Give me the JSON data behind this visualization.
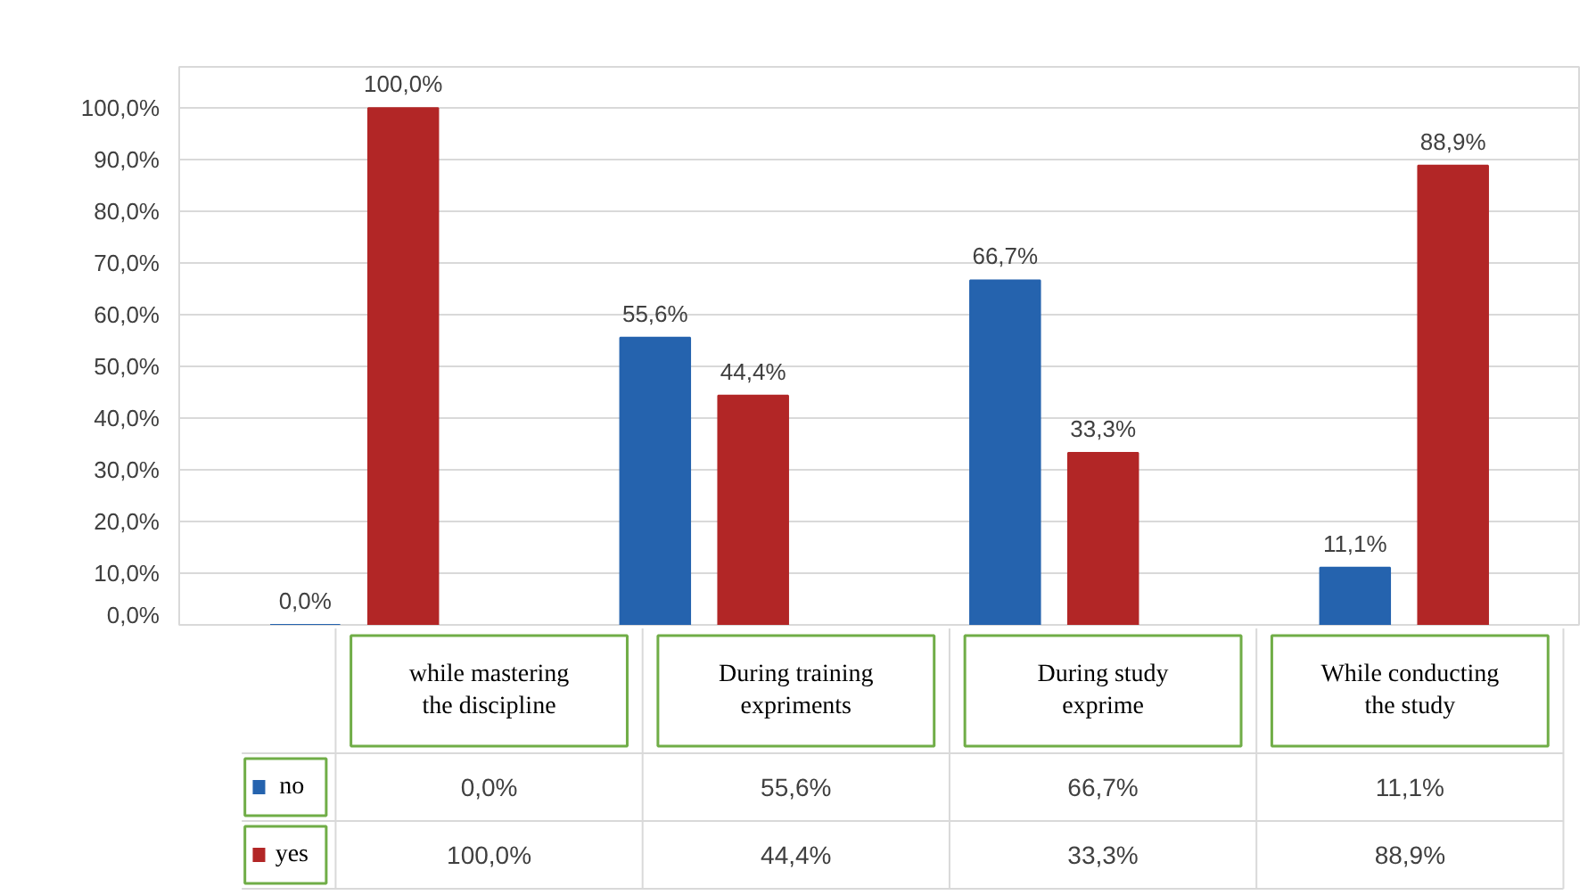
{
  "chart_data": {
    "type": "bar",
    "categories": [
      "while mastering the discipline",
      "During training expriments",
      "During study exprime",
      "While conducting the study"
    ],
    "series": [
      {
        "name": "no",
        "color": "#2563ae",
        "values": [
          0.0,
          55.6,
          66.7,
          11.1
        ],
        "value_labels": [
          "0,0%",
          "55,6%",
          "66,7%",
          "11,1%"
        ]
      },
      {
        "name": "yes",
        "color": "#b22626",
        "values": [
          100.0,
          44.4,
          33.3,
          88.9
        ],
        "value_labels": [
          "100,0%",
          "44,4%",
          "33,3%",
          "88,9%"
        ]
      }
    ],
    "ylim": [
      0,
      108
    ],
    "yticks": [
      {
        "value": 0,
        "label": "0,0%"
      },
      {
        "value": 10,
        "label": "10,0%"
      },
      {
        "value": 20,
        "label": "20,0%"
      },
      {
        "value": 30,
        "label": "30,0%"
      },
      {
        "value": 40,
        "label": "40,0%"
      },
      {
        "value": 50,
        "label": "50,0%"
      },
      {
        "value": 60,
        "label": "60,0%"
      },
      {
        "value": 70,
        "label": "70,0%"
      },
      {
        "value": 80,
        "label": "80,0%"
      },
      {
        "value": 90,
        "label": "90,0%"
      },
      {
        "value": 100,
        "label": "100,0%"
      }
    ],
    "grid": "y",
    "legend": "bottom left"
  }
}
